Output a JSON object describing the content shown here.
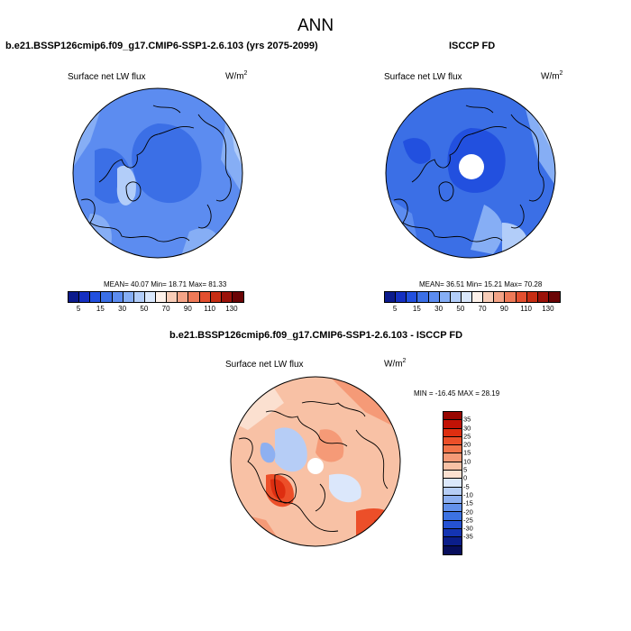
{
  "title": "ANN",
  "panels": [
    {
      "title": "b.e21.BSSP126cmip6.f09_g17.CMIP6-SSP1-2.6.103 (yrs 2075-2099)",
      "variable": "Surface net LW flux",
      "units": "W/m",
      "units_sup": "2",
      "stats": "MEAN=  40.07   Min=  18.71   Max=  81.33"
    },
    {
      "title": "ISCCP FD",
      "variable": "Surface net LW flux",
      "units": "W/m",
      "units_sup": "2",
      "stats": "MEAN=  36.51   Min=  15.21   Max=  70.28"
    },
    {
      "title": "b.e21.BSSP126cmip6.f09_g17.CMIP6-SSP1-2.6.103 - ISCCP FD",
      "variable": "Surface net LW flux",
      "units": "W/m",
      "units_sup": "2",
      "stats": "MIN = -16.45 MAX =  28.19"
    }
  ],
  "colorbar_abs": {
    "colors": [
      "#0b1a8c",
      "#1530c2",
      "#2250df",
      "#3b6fe6",
      "#5c8cf0",
      "#86aef5",
      "#b2cdf9",
      "#d9e7fc",
      "#fdf1ea",
      "#f8cdb8",
      "#f4a487",
      "#ee7a58",
      "#e34f2f",
      "#c62d13",
      "#9b1209",
      "#6a0405"
    ],
    "tick_labels": [
      "5",
      "15",
      "30",
      "50",
      "70",
      "90",
      "110",
      "130"
    ]
  },
  "colorbar_diff": {
    "colors": [
      "#980600",
      "#c21205",
      "#de2e10",
      "#ec4f29",
      "#f27349",
      "#f59a77",
      "#f8c1a5",
      "#fbe0d0",
      "#dbe7fb",
      "#b6cdf6",
      "#8eb0f1",
      "#6391eb",
      "#3c72e2",
      "#2552d4",
      "#1434b3",
      "#0b1e8a",
      "#070e5c"
    ],
    "tick_labels": [
      "35",
      "30",
      "25",
      "20",
      "15",
      "10",
      "5",
      "0",
      "-5",
      "-10",
      "-15",
      "-20",
      "-25",
      "-30",
      "-35"
    ]
  },
  "map": {
    "projection": "north-polar-stereographic",
    "panel_1_dominant": "#5c8cf0",
    "panel_2_dominant": "#3b6fe6",
    "panel_3_dominant": "#f8c1a5",
    "coastline_color": "#000000"
  }
}
